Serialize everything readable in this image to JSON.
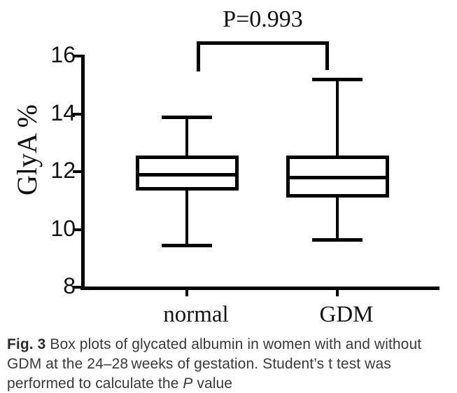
{
  "colors": {
    "ink": "#000000",
    "caption_text": "#3a3a3a",
    "background": "#ffffff"
  },
  "chart_data": {
    "type": "box",
    "title": "",
    "xlabel": "",
    "ylabel": "GlyA %",
    "ylim": [
      8,
      16
    ],
    "yticks": [
      8,
      10,
      12,
      14,
      16
    ],
    "grid": false,
    "legend_position": "none",
    "categories": [
      "normal",
      "GDM"
    ],
    "series": [
      {
        "name": "normal",
        "whisker_min": 9.45,
        "q1": 11.35,
        "median": 11.9,
        "q3": 12.55,
        "whisker_max": 13.9
      },
      {
        "name": "GDM",
        "whisker_min": 9.65,
        "q1": 11.1,
        "median": 11.8,
        "q3": 12.55,
        "whisker_max": 15.2
      }
    ],
    "annotation": {
      "text": "P=0.993",
      "between": [
        "normal",
        "GDM"
      ]
    }
  },
  "caption": {
    "label": "Fig. 3",
    "text_1": " Box plots of glycated albumin in women with and without GDM at the 24–28 weeks of gestation. Student’s t test was performed to calculate the ",
    "p_italic": "P",
    "text_2": " value"
  }
}
